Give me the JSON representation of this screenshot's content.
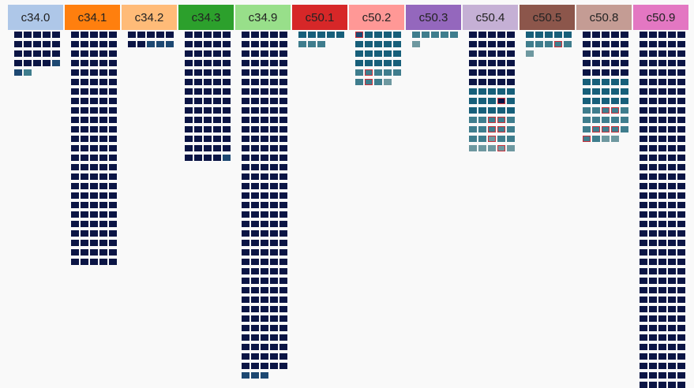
{
  "chart_data": {
    "type": "waffle-columns",
    "columns": [
      {
        "label": "c34.0",
        "color": "#aec7e8",
        "rows": [
          [
            "D",
            "D",
            "D",
            "D",
            "D"
          ],
          [
            "D",
            "D",
            "D",
            "D",
            "D"
          ],
          [
            "D",
            "D",
            "D",
            "D",
            "D"
          ],
          [
            "D",
            "D",
            "D",
            "D",
            "B"
          ],
          [
            "B",
            "T"
          ]
        ]
      },
      {
        "label": "c34.1",
        "color": "#ff7f0e",
        "rows": [
          [
            "D",
            "D",
            "D",
            "D",
            "D"
          ],
          [
            "D",
            "D",
            "D",
            "D",
            "D"
          ],
          [
            "D",
            "D",
            "D",
            "D",
            "D"
          ],
          [
            "D",
            "D",
            "D",
            "D",
            "D"
          ],
          [
            "D",
            "D",
            "D",
            "D",
            "D"
          ],
          [
            "D",
            "D",
            "D",
            "D",
            "D"
          ],
          [
            "D",
            "D",
            "D",
            "D",
            "D"
          ],
          [
            "D",
            "D",
            "D",
            "D",
            "D"
          ],
          [
            "D",
            "D",
            "D",
            "D",
            "D"
          ],
          [
            "D",
            "D",
            "D",
            "D",
            "D"
          ],
          [
            "D",
            "D",
            "D",
            "D",
            "D"
          ],
          [
            "D",
            "D",
            "D",
            "D",
            "D"
          ],
          [
            "D",
            "D",
            "D",
            "D",
            "D"
          ],
          [
            "D",
            "D",
            "D",
            "D",
            "D"
          ],
          [
            "D",
            "D",
            "D",
            "D",
            "D"
          ],
          [
            "D",
            "D",
            "D",
            "D",
            "D"
          ],
          [
            "D",
            "D",
            "D",
            "D",
            "D"
          ],
          [
            "D",
            "D",
            "D",
            "D",
            "D"
          ],
          [
            "D",
            "D",
            "D",
            "D",
            "D"
          ],
          [
            "D",
            "D",
            "D",
            "D",
            "D"
          ],
          [
            "D",
            "D",
            "D",
            "D",
            "D"
          ],
          [
            "D",
            "D",
            "D",
            "D",
            "D"
          ],
          [
            "D",
            "D",
            "D",
            "D",
            "D"
          ],
          [
            "D",
            "D",
            "D",
            "D",
            "D"
          ],
          [
            "D",
            "D",
            "D",
            "D",
            "D"
          ]
        ]
      },
      {
        "label": "c34.2",
        "color": "#ffbb78",
        "rows": [
          [
            "D",
            "D",
            "D",
            "D",
            "D"
          ],
          [
            "D",
            "D",
            "B",
            "B",
            "B"
          ]
        ]
      },
      {
        "label": "c34.3",
        "color": "#2ca02c",
        "rows": [
          [
            "D",
            "D",
            "D",
            "D",
            "D"
          ],
          [
            "D",
            "D",
            "D",
            "D",
            "D"
          ],
          [
            "D",
            "D",
            "D",
            "D",
            "D"
          ],
          [
            "D",
            "D",
            "D",
            "D",
            "D"
          ],
          [
            "D",
            "D",
            "D",
            "D",
            "D"
          ],
          [
            "D",
            "D",
            "D",
            "D",
            "D"
          ],
          [
            "D",
            "D",
            "D",
            "D",
            "D"
          ],
          [
            "D",
            "D",
            "D",
            "D",
            "D"
          ],
          [
            "D",
            "D",
            "D",
            "D",
            "D"
          ],
          [
            "D",
            "D",
            "D",
            "D",
            "D"
          ],
          [
            "D",
            "D",
            "D",
            "D",
            "D"
          ],
          [
            "D",
            "D",
            "D",
            "D",
            "D"
          ],
          [
            "D",
            "D",
            "D",
            "D",
            "D"
          ],
          [
            "D",
            "D",
            "D",
            "D",
            "B"
          ]
        ]
      },
      {
        "label": "c34.9",
        "color": "#98df8a",
        "rows": [
          [
            "D",
            "D",
            "D",
            "D",
            "D"
          ],
          [
            "D",
            "D",
            "D",
            "D",
            "D"
          ],
          [
            "D",
            "D",
            "D",
            "D",
            "D"
          ],
          [
            "D",
            "D",
            "D",
            "D",
            "D"
          ],
          [
            "D",
            "D",
            "D",
            "D",
            "D"
          ],
          [
            "D",
            "D",
            "D",
            "D",
            "D"
          ],
          [
            "D",
            "D",
            "D",
            "D",
            "D"
          ],
          [
            "D",
            "D",
            "D",
            "D",
            "D"
          ],
          [
            "D",
            "D",
            "D",
            "D",
            "D"
          ],
          [
            "D",
            "D",
            "D",
            "D",
            "D"
          ],
          [
            "D",
            "D",
            "D",
            "D",
            "D"
          ],
          [
            "D",
            "D",
            "D",
            "D",
            "D"
          ],
          [
            "D",
            "D",
            "D",
            "D",
            "D"
          ],
          [
            "D",
            "D",
            "D",
            "D",
            "D"
          ],
          [
            "D",
            "D",
            "D",
            "D",
            "D"
          ],
          [
            "D",
            "D",
            "D",
            "D",
            "D"
          ],
          [
            "D",
            "D",
            "D",
            "D",
            "D"
          ],
          [
            "D",
            "D",
            "D",
            "D",
            "D"
          ],
          [
            "D",
            "D",
            "D",
            "D",
            "D"
          ],
          [
            "D",
            "D",
            "D",
            "D",
            "D"
          ],
          [
            "D",
            "D",
            "D",
            "D",
            "D"
          ],
          [
            "D",
            "D",
            "D",
            "D",
            "D"
          ],
          [
            "D",
            "D",
            "D",
            "D",
            "D"
          ],
          [
            "D",
            "D",
            "D",
            "D",
            "D"
          ],
          [
            "D",
            "D",
            "D",
            "D",
            "D"
          ],
          [
            "D",
            "D",
            "D",
            "D",
            "D"
          ],
          [
            "D",
            "D",
            "D",
            "D",
            "D"
          ],
          [
            "D",
            "D",
            "D",
            "D",
            "D"
          ],
          [
            "D",
            "D",
            "D",
            "D",
            "D"
          ],
          [
            "D",
            "D",
            "D",
            "D",
            "D"
          ],
          [
            "D",
            "D",
            "D",
            "D",
            "D"
          ],
          [
            "D",
            "D",
            "D",
            "D",
            "D"
          ],
          [
            "D",
            "D",
            "D",
            "D",
            "D"
          ],
          [
            "D",
            "D",
            "D",
            "D",
            "D"
          ],
          [
            "D",
            "D",
            "D",
            "D",
            "D"
          ],
          [
            "D",
            "D",
            "D",
            "D",
            "D"
          ],
          [
            "B",
            "B",
            "B"
          ]
        ]
      },
      {
        "label": "c50.1",
        "color": "#d62728",
        "rows": [
          [
            "C",
            "C",
            "C",
            "C",
            "C"
          ],
          [
            "T",
            "T",
            "T"
          ]
        ]
      },
      {
        "label": "c50.2",
        "color": "#ff9896",
        "rows": [
          [
            "Bx",
            "C",
            "C",
            "C",
            "C"
          ],
          [
            "C",
            "C",
            "C",
            "C",
            "C"
          ],
          [
            "C",
            "C",
            "C",
            "C",
            "C"
          ],
          [
            "C",
            "C",
            "C",
            "C",
            "C"
          ],
          [
            "T",
            "Tx",
            "T",
            "T",
            "T"
          ],
          [
            "T",
            "Tx",
            "T",
            "L"
          ]
        ]
      },
      {
        "label": "c50.3",
        "color": "#9467bd",
        "rows": [
          [
            "T",
            "T",
            "T",
            "T",
            "T"
          ],
          [
            "L"
          ]
        ]
      },
      {
        "label": "c50.4",
        "color": "#c5b0d5",
        "rows": [
          [
            "D",
            "D",
            "D",
            "D",
            "D"
          ],
          [
            "D",
            "D",
            "D",
            "D",
            "D"
          ],
          [
            "D",
            "D",
            "D",
            "D",
            "D"
          ],
          [
            "D",
            "D",
            "D",
            "D",
            "D"
          ],
          [
            "D",
            "D",
            "D",
            "D",
            "D"
          ],
          [
            "D",
            "D",
            "D",
            "D",
            "D"
          ],
          [
            "C",
            "C",
            "C",
            "C",
            "C"
          ],
          [
            "C",
            "C",
            "C",
            "Cx",
            "C"
          ],
          [
            "C",
            "C",
            "C",
            "C",
            "C"
          ],
          [
            "T",
            "T",
            "Tx",
            "Tx",
            "T"
          ],
          [
            "T",
            "T",
            "Tx",
            "Tx",
            "T"
          ],
          [
            "T",
            "T",
            "Lx",
            "T",
            "T"
          ],
          [
            "L",
            "L",
            "L",
            "Lx",
            "L"
          ]
        ]
      },
      {
        "label": "c50.5",
        "color": "#8c564b",
        "rows": [
          [
            "C",
            "C",
            "C",
            "C",
            "C"
          ],
          [
            "T",
            "T",
            "T",
            "Tx",
            "T"
          ],
          [
            "L"
          ]
        ]
      },
      {
        "label": "c50.8",
        "color": "#c49c94",
        "rows": [
          [
            "D",
            "D",
            "D",
            "D",
            "D"
          ],
          [
            "D",
            "D",
            "D",
            "D",
            "D"
          ],
          [
            "D",
            "D",
            "D",
            "D",
            "D"
          ],
          [
            "D",
            "D",
            "D",
            "D",
            "D"
          ],
          [
            "D",
            "D",
            "D",
            "D",
            "D"
          ],
          [
            "C",
            "C",
            "C",
            "C",
            "C"
          ],
          [
            "C",
            "C",
            "C",
            "C",
            "C"
          ],
          [
            "C",
            "C",
            "C",
            "C",
            "C"
          ],
          [
            "T",
            "T",
            "Tx",
            "Tx",
            "T"
          ],
          [
            "T",
            "T",
            "T",
            "T",
            "T"
          ],
          [
            "T",
            "Tx",
            "Tx",
            "Tx",
            "T"
          ],
          [
            "Tx",
            "T",
            "L",
            "L"
          ]
        ]
      },
      {
        "label": "c50.9",
        "color": "#e377c2",
        "rows": [
          [
            "D",
            "D",
            "D",
            "D",
            "D"
          ],
          [
            "D",
            "D",
            "D",
            "D",
            "D"
          ],
          [
            "D",
            "D",
            "D",
            "D",
            "D"
          ],
          [
            "D",
            "D",
            "D",
            "D",
            "D"
          ],
          [
            "D",
            "D",
            "D",
            "D",
            "D"
          ],
          [
            "D",
            "D",
            "D",
            "D",
            "D"
          ],
          [
            "D",
            "D",
            "D",
            "D",
            "D"
          ],
          [
            "D",
            "D",
            "D",
            "D",
            "D"
          ],
          [
            "D",
            "D",
            "D",
            "D",
            "D"
          ],
          [
            "D",
            "D",
            "D",
            "D",
            "D"
          ],
          [
            "D",
            "D",
            "D",
            "D",
            "D"
          ],
          [
            "D",
            "D",
            "D",
            "D",
            "D"
          ],
          [
            "D",
            "D",
            "D",
            "D",
            "D"
          ],
          [
            "D",
            "D",
            "D",
            "D",
            "D"
          ],
          [
            "D",
            "D",
            "D",
            "D",
            "D"
          ],
          [
            "D",
            "D",
            "D",
            "D",
            "D"
          ],
          [
            "D",
            "D",
            "D",
            "D",
            "D"
          ],
          [
            "D",
            "D",
            "D",
            "D",
            "D"
          ],
          [
            "D",
            "D",
            "D",
            "D",
            "D"
          ],
          [
            "D",
            "D",
            "D",
            "D",
            "D"
          ],
          [
            "D",
            "D",
            "D",
            "D",
            "D"
          ],
          [
            "D",
            "D",
            "D",
            "D",
            "D"
          ],
          [
            "D",
            "D",
            "D",
            "D",
            "D"
          ],
          [
            "D",
            "D",
            "D",
            "D",
            "D"
          ],
          [
            "D",
            "D",
            "D",
            "D",
            "D"
          ],
          [
            "D",
            "D",
            "D",
            "D",
            "D"
          ],
          [
            "D",
            "D",
            "D",
            "D",
            "D"
          ],
          [
            "D",
            "D",
            "D",
            "D",
            "D"
          ],
          [
            "D",
            "D",
            "D",
            "D",
            "D"
          ],
          [
            "D",
            "D",
            "D",
            "D",
            "D"
          ],
          [
            "D",
            "D",
            "D",
            "D",
            "D"
          ],
          [
            "D",
            "D",
            "D",
            "D",
            "D"
          ],
          [
            "D",
            "D",
            "D",
            "D",
            "D"
          ],
          [
            "D",
            "D",
            "D",
            "D",
            "D"
          ],
          [
            "D",
            "D",
            "D",
            "D",
            "D"
          ],
          [
            "D",
            "D",
            "D",
            "D",
            "D"
          ],
          [
            "D",
            "D",
            "D",
            "D",
            "D"
          ],
          [
            "D",
            "D",
            "D",
            "D",
            "D"
          ]
        ]
      }
    ],
    "cell_colors": {
      "D": "#0b1545",
      "B": "#1d4872",
      "C": "#175f7a",
      "T": "#3f7d8d",
      "L": "#6e98a0",
      "Bx": "#1d4872",
      "Tx": "#3f7d8d",
      "Lx": "#6e98a0"
    },
    "outline_color": "#c8323c"
  }
}
